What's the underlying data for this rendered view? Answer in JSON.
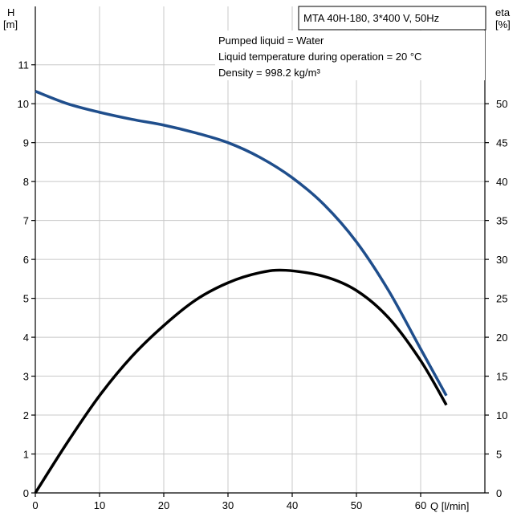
{
  "chart_data": {
    "type": "line",
    "title_box": "MTA 40H-180, 3*400 V, 50Hz",
    "info_lines": [
      "Pumped liquid = Water",
      "Liquid temperature during operation = 20 °C",
      "Density = 998.2 kg/m³"
    ],
    "y_left_label": [
      "H",
      "[m]"
    ],
    "y_right_label": [
      "eta",
      "[%]"
    ],
    "x_label": "Q [l/min]",
    "x_ticks": [
      0,
      10,
      20,
      30,
      40,
      50,
      60
    ],
    "y_left_ticks": [
      0,
      1,
      2,
      3,
      4,
      5,
      6,
      7,
      8,
      9,
      10,
      11
    ],
    "y_right_ticks": [
      0,
      5,
      10,
      15,
      20,
      25,
      30,
      35,
      40,
      45,
      50
    ],
    "xlim": [
      0,
      70
    ],
    "ylim_left": [
      0,
      12.5
    ],
    "ylim_right": [
      0,
      62.5
    ],
    "grid": true,
    "series": [
      {
        "axis": "left",
        "color": "#1f4e8c",
        "x": [
          0,
          5,
          10,
          15,
          20,
          25,
          30,
          35,
          40,
          45,
          50,
          55,
          60,
          64
        ],
        "y": [
          10.32,
          10.0,
          9.78,
          9.6,
          9.45,
          9.25,
          9.0,
          8.62,
          8.1,
          7.4,
          6.45,
          5.2,
          3.7,
          2.5
        ]
      },
      {
        "axis": "right",
        "color": "#000000",
        "x": [
          0,
          5,
          10,
          15,
          20,
          25,
          30,
          35,
          39,
          45,
          50,
          55,
          60,
          64
        ],
        "y": [
          0,
          6.5,
          12.5,
          17.5,
          21.5,
          24.8,
          27.0,
          28.3,
          28.6,
          27.8,
          26.0,
          22.5,
          17.0,
          11.3
        ]
      }
    ]
  }
}
